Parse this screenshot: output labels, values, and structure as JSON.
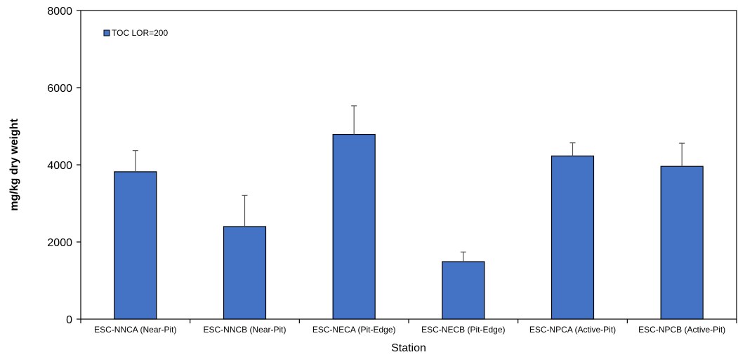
{
  "chart_data": {
    "type": "bar",
    "xlabel": "Station",
    "ylabel": "mg/kg dry weight",
    "ylim": [
      0,
      8000
    ],
    "yticks": [
      0,
      2000,
      4000,
      6000,
      8000
    ],
    "grid": false,
    "legend": {
      "placement": "top-left",
      "entries": [
        "TOC LOR=200"
      ]
    },
    "categories": [
      "ESC-NNCA (Near-Pit)",
      "ESC-NNCB (Near-Pit)",
      "ESC-NECA (Pit-Edge)",
      "ESC-NECB (Pit-Edge)",
      "ESC-NPCA (Active-Pit)",
      "ESC-NPCB (Active-Pit)"
    ],
    "series": [
      {
        "name": "TOC LOR=200",
        "color": "#4472C4",
        "values": [
          3820,
          2400,
          4790,
          1490,
          4230,
          3960
        ],
        "errors_plus": [
          550,
          810,
          740,
          250,
          340,
          600
        ]
      }
    ]
  }
}
